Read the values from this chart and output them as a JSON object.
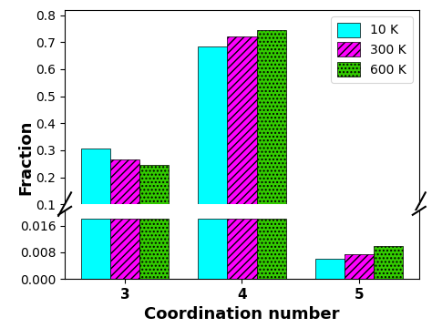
{
  "categories": [
    3,
    4,
    5
  ],
  "series": {
    "10 K": {
      "values_upper": [
        0.305,
        0.685,
        0.0
      ],
      "values_lower": [
        0.018,
        0.018,
        0.006
      ],
      "color": "#00FFFF",
      "hatch": null
    },
    "300 K": {
      "values_upper": [
        0.265,
        0.72,
        0.0
      ],
      "values_lower": [
        0.018,
        0.018,
        0.0075
      ],
      "color": "#FF00FF",
      "hatch": "////"
    },
    "600 K": {
      "values_upper": [
        0.245,
        0.745,
        0.0
      ],
      "values_lower": [
        0.018,
        0.018,
        0.01
      ],
      "color": "#33CC00",
      "hatch": "...."
    }
  },
  "upper_ylim": [
    0.1,
    0.82
  ],
  "lower_ylim": [
    0.0,
    0.0205
  ],
  "upper_yticks": [
    0.1,
    0.2,
    0.3,
    0.4,
    0.5,
    0.6,
    0.7,
    0.8
  ],
  "lower_yticks": [
    0.0,
    0.008,
    0.016
  ],
  "xlabel": "Coordination number",
  "ylabel": "Fraction",
  "bar_width": 0.25,
  "label_fontsize": 12,
  "tick_fontsize": 10,
  "legend_fontsize": 10
}
